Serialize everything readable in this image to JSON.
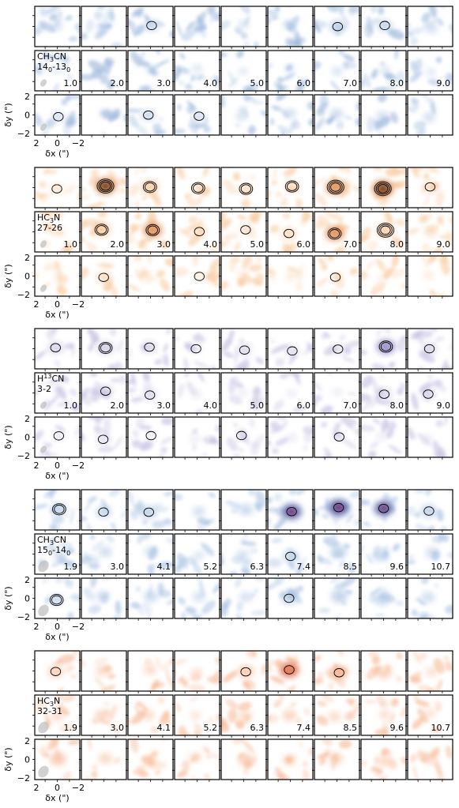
{
  "chart_data": {
    "type": "heatmap",
    "description_axes": {
      "xlabel": "δx (\")",
      "ylabel": "δy (\")",
      "xticks": [
        "2",
        "0",
        "−2"
      ],
      "yticks": [
        "2",
        "0",
        "−2"
      ]
    },
    "blocks": [
      {
        "molecule": "CH3CN",
        "molecule_line1_base": "CH",
        "molecule_line1_sub": "3",
        "molecule_line1_tail": "CN",
        "transition_line2": "14",
        "transition_sub_a": "0",
        "transition_mid": "-13",
        "transition_sub_b": "0",
        "velocities": [
          "1.0",
          "2.0",
          "3.0",
          "4.0",
          "5.0",
          "6.0",
          "7.0",
          "8.0",
          "9.0"
        ],
        "colormap": "blue",
        "colors": {
          "low": "#e8eef7",
          "mid": "#9bb7dc",
          "high": "#4f6fa8",
          "peak": "#2b1f4f"
        },
        "row_intensity": [
          [
            0.25,
            0.3,
            0.45,
            0.3,
            0.2,
            0.25,
            0.55,
            0.45,
            0.3
          ],
          [
            0.12,
            0.15,
            0.22,
            0.18,
            0.12,
            0.15,
            0.22,
            0.2,
            0.15
          ],
          [
            0.3,
            0.3,
            0.4,
            0.3,
            0.25,
            0.3,
            0.35,
            0.3,
            0.3
          ]
        ],
        "contours": [
          [
            0,
            0,
            1,
            0,
            0,
            0,
            1,
            1,
            0
          ],
          [
            0,
            0,
            0,
            0,
            0,
            0,
            0,
            0,
            0
          ],
          [
            1,
            0,
            1,
            1,
            0,
            0,
            0,
            0,
            0
          ]
        ]
      },
      {
        "molecule": "HC3N",
        "molecule_line1_base": "HC",
        "molecule_line1_sub": "3",
        "molecule_line1_tail": "N",
        "transition_line2": "27-26",
        "transition_sub_a": "",
        "transition_mid": "",
        "transition_sub_b": "",
        "velocities": [
          "1.0",
          "2.0",
          "3.0",
          "4.0",
          "5.0",
          "6.0",
          "7.0",
          "8.0",
          "9.0"
        ],
        "colormap": "orange",
        "colors": {
          "low": "#fdf0e2",
          "mid": "#f8c89a",
          "high": "#e08a4a",
          "peak": "#3a2010"
        },
        "row_intensity": [
          [
            0.35,
            0.9,
            0.7,
            0.4,
            0.35,
            0.45,
            0.8,
            0.95,
            0.4
          ],
          [
            0.25,
            0.7,
            0.8,
            0.45,
            0.3,
            0.5,
            0.75,
            0.7,
            0.4
          ],
          [
            0.2,
            0.45,
            0.25,
            0.2,
            0.15,
            0.2,
            0.2,
            0.15,
            0.2
          ]
        ],
        "contours": [
          [
            1,
            3,
            2,
            2,
            2,
            2,
            3,
            3,
            1
          ],
          [
            0,
            2,
            2,
            1,
            1,
            1,
            2,
            3,
            0
          ],
          [
            0,
            1,
            0,
            1,
            0,
            0,
            1,
            0,
            0
          ]
        ]
      },
      {
        "molecule": "H13CN",
        "molecule_line1_base": "H",
        "molecule_line1_sup": "13",
        "molecule_line1_tail": "CN",
        "transition_line2": "3-2",
        "transition_sub_a": "",
        "transition_mid": "",
        "transition_sub_b": "",
        "velocities": [
          "1.0",
          "2.0",
          "3.0",
          "4.0",
          "5.0",
          "6.0",
          "7.0",
          "8.0",
          "9.0"
        ],
        "colormap": "purple",
        "colors": {
          "low": "#f1eff7",
          "mid": "#c5c0e0",
          "high": "#8a80c0",
          "peak": "#2a1a5a"
        },
        "row_intensity": [
          [
            0.55,
            0.6,
            0.5,
            0.25,
            0.45,
            0.4,
            0.35,
            0.75,
            0.5
          ],
          [
            0.2,
            0.5,
            0.45,
            0.15,
            0.15,
            0.15,
            0.15,
            0.5,
            0.45
          ],
          [
            0.25,
            0.35,
            0.2,
            0.15,
            0.2,
            0.15,
            0.25,
            0.15,
            0.15
          ]
        ],
        "contours": [
          [
            1,
            2,
            1,
            1,
            1,
            1,
            1,
            2,
            1
          ],
          [
            0,
            1,
            1,
            0,
            0,
            0,
            0,
            1,
            1
          ],
          [
            1,
            1,
            1,
            0,
            1,
            0,
            1,
            0,
            0
          ]
        ]
      },
      {
        "molecule": "CH3CN",
        "molecule_line1_base": "CH",
        "molecule_line1_sub": "3",
        "molecule_line1_tail": "CN",
        "transition_line2": "15",
        "transition_sub_a": "0",
        "transition_mid": "-14",
        "transition_sub_b": "0",
        "velocities": [
          "1.9",
          "3.0",
          "4.1",
          "5.2",
          "6.3",
          "7.4",
          "8.5",
          "9.6",
          "10.7"
        ],
        "colormap": "bluepurple",
        "colors": {
          "low": "#e6eef8",
          "mid": "#a8c2e2",
          "high": "#6a86bf",
          "peak": "#7a1a6e"
        },
        "row_intensity": [
          [
            0.55,
            0.5,
            0.6,
            0.35,
            0.45,
            0.9,
            1.0,
            0.85,
            0.6
          ],
          [
            0.35,
            0.4,
            0.35,
            0.25,
            0.35,
            0.55,
            0.6,
            0.5,
            0.4
          ],
          [
            0.45,
            0.4,
            0.45,
            0.35,
            0.35,
            0.55,
            0.6,
            0.55,
            0.4
          ]
        ],
        "contours": [
          [
            2,
            1,
            1,
            0,
            0,
            1,
            1,
            1,
            1
          ],
          [
            0,
            0,
            0,
            0,
            0,
            1,
            0,
            0,
            0
          ],
          [
            2,
            0,
            0,
            0,
            0,
            1,
            0,
            0,
            0
          ]
        ]
      },
      {
        "molecule": "HC3N",
        "molecule_line1_base": "HC",
        "molecule_line1_sub": "3",
        "molecule_line1_tail": "N",
        "transition_line2": "32-31",
        "transition_sub_a": "",
        "transition_mid": "",
        "transition_sub_b": "",
        "velocities": [
          "1.9",
          "3.0",
          "4.1",
          "5.2",
          "6.3",
          "7.4",
          "8.5",
          "9.6",
          "10.7"
        ],
        "colormap": "red",
        "colors": {
          "low": "#fdeee4",
          "mid": "#f6b894",
          "high": "#e0643a",
          "peak": "#7a1010"
        },
        "row_intensity": [
          [
            0.55,
            0.4,
            0.35,
            0.3,
            0.6,
            0.8,
            0.7,
            0.5,
            0.3
          ],
          [
            0.35,
            0.45,
            0.35,
            0.2,
            0.4,
            0.45,
            0.35,
            0.3,
            0.25
          ],
          [
            0.6,
            0.4,
            0.35,
            0.3,
            0.55,
            0.4,
            0.45,
            0.4,
            0.35
          ]
        ],
        "contours": [
          [
            1,
            0,
            0,
            0,
            1,
            1,
            1,
            0,
            0
          ],
          [
            0,
            0,
            0,
            0,
            0,
            0,
            0,
            0,
            0
          ],
          [
            0,
            0,
            0,
            0,
            0,
            0,
            0,
            0,
            0
          ]
        ]
      }
    ]
  }
}
